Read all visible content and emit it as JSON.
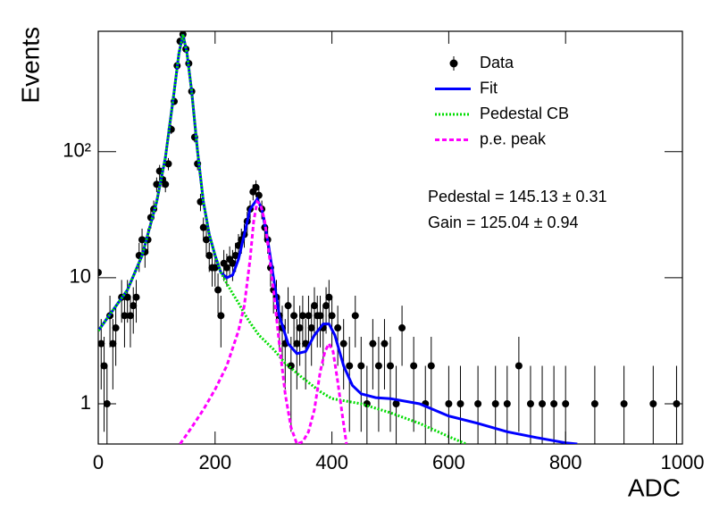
{
  "chart_data": {
    "type": "line",
    "x_label": "ADC",
    "y_label": "Events",
    "log_y": true,
    "xlim": [
      0,
      1000
    ],
    "ylim": [
      0.48,
      900
    ],
    "xticks": [
      0,
      200,
      400,
      600,
      800,
      1000
    ],
    "yticks": [
      1,
      10,
      {
        "value": 100,
        "label": "10²"
      }
    ],
    "annotations": [
      "Pedestal = 145.13 ± 0.31",
      "Gain = 125.04 ± 0.94"
    ],
    "series": [
      {
        "name": "Data",
        "color": "#000000",
        "kind": "points",
        "x": [
          0,
          5,
          10,
          15,
          20,
          25,
          30,
          40,
          45,
          50,
          55,
          60,
          65,
          70,
          75,
          80,
          85,
          90,
          95,
          100,
          105,
          110,
          115,
          120,
          125,
          130,
          135,
          140,
          145,
          150,
          155,
          160,
          165,
          170,
          175,
          180,
          185,
          190,
          195,
          200,
          205,
          210,
          215,
          220,
          225,
          230,
          235,
          240,
          245,
          250,
          255,
          260,
          265,
          270,
          275,
          280,
          285,
          290,
          295,
          300,
          305,
          310,
          315,
          320,
          325,
          330,
          335,
          340,
          345,
          350,
          355,
          360,
          365,
          370,
          375,
          380,
          385,
          390,
          395,
          400,
          410,
          420,
          430,
          440,
          450,
          460,
          470,
          480,
          490,
          500,
          510,
          520,
          540,
          560,
          570,
          600,
          620,
          650,
          680,
          700,
          720,
          740,
          760,
          780,
          800,
          850,
          900,
          950,
          990
        ],
        "values": [
          11,
          3,
          2,
          1,
          5,
          3,
          4,
          7,
          5,
          7,
          5,
          6,
          7,
          15,
          20,
          16,
          20,
          30,
          35,
          55,
          70,
          60,
          55,
          80,
          150,
          250,
          480,
          750,
          850,
          650,
          500,
          300,
          130,
          80,
          40,
          25,
          20,
          15,
          12,
          12,
          8,
          5,
          13,
          12,
          14,
          13,
          15,
          18,
          20,
          22,
          28,
          35,
          48,
          52,
          45,
          35,
          25,
          20,
          12,
          8,
          7,
          5,
          4,
          3,
          6,
          2,
          5,
          3,
          4,
          5,
          3,
          5,
          4,
          6,
          5,
          5,
          4,
          6,
          7,
          5,
          4,
          3,
          2,
          5,
          2,
          1,
          3,
          2,
          3,
          2,
          1,
          4,
          2,
          1,
          2,
          1,
          1,
          1,
          1,
          1,
          2,
          1,
          1,
          1,
          1,
          1,
          1,
          1,
          1
        ],
        "errors": [
          3.3,
          1.7,
          1.4,
          1,
          2.2,
          1.7,
          2,
          2.6,
          2.2,
          2.6,
          2.2,
          2.4,
          2.6,
          3.9,
          4.5,
          4,
          4.5,
          5.5,
          5.9,
          7.4,
          8.4,
          7.7,
          7.4,
          8.9,
          12.2,
          15.8,
          21.9,
          27.4,
          29.2,
          25.5,
          22.4,
          17.3,
          11.4,
          8.9,
          6.3,
          5,
          4.5,
          3.9,
          3.5,
          3.5,
          2.8,
          2.2,
          3.6,
          3.5,
          3.7,
          3.6,
          3.9,
          4.2,
          4.5,
          4.7,
          5.3,
          5.9,
          6.9,
          7.2,
          6.7,
          5.9,
          5,
          4.5,
          3.5,
          2.8,
          2.6,
          2.2,
          2,
          1.7,
          2.4,
          1.4,
          2.2,
          1.7,
          2,
          2.2,
          1.7,
          2.2,
          2,
          2.4,
          2.2,
          2.2,
          2,
          2.4,
          2.6,
          2.2,
          2,
          1.7,
          1.4,
          2.2,
          1.4,
          1,
          1.7,
          1.4,
          1.7,
          1.4,
          1,
          2,
          1.4,
          1,
          1.4,
          1,
          1,
          1,
          1,
          1,
          1.4,
          1,
          1,
          1,
          1,
          1,
          1,
          1,
          1
        ]
      },
      {
        "name": "Fit",
        "color": "#0000ff",
        "kind": "solid",
        "x": [
          0,
          25,
          50,
          75,
          100,
          115,
          130,
          138,
          145,
          152,
          160,
          170,
          180,
          190,
          200,
          210,
          220,
          230,
          240,
          250,
          260,
          272,
          280,
          290,
          300,
          310,
          325,
          340,
          355,
          370,
          385,
          395,
          405,
          420,
          435,
          450,
          475,
          500,
          550,
          600,
          650,
          700,
          750,
          800,
          820
        ],
        "values": [
          3.8,
          5.5,
          8,
          15,
          40,
          90,
          300,
          600,
          850,
          600,
          300,
          100,
          40,
          22,
          15,
          11,
          10,
          10.5,
          14,
          22,
          35,
          42,
          35,
          20,
          10,
          5,
          3,
          2.5,
          2.6,
          3.5,
          4.3,
          4.3,
          3.5,
          2,
          1.4,
          1.2,
          1.12,
          1.1,
          1.0,
          0.8,
          0.7,
          0.6,
          0.54,
          0.49,
          0.48
        ]
      },
      {
        "name": "Pedestal CB",
        "color": "#00dd00",
        "kind": "dotted",
        "x": [
          0,
          25,
          50,
          75,
          100,
          115,
          130,
          138,
          145,
          152,
          160,
          170,
          180,
          190,
          200,
          210,
          220,
          230,
          240,
          250,
          260,
          275,
          290,
          300,
          320,
          350,
          380,
          400,
          450,
          500,
          550,
          600,
          630
        ],
        "values": [
          3.8,
          5.5,
          8,
          15,
          40,
          90,
          300,
          600,
          850,
          600,
          300,
          100,
          40,
          22,
          15,
          11,
          9,
          7.5,
          6.3,
          5.2,
          4.4,
          3.5,
          3,
          2.7,
          2.1,
          1.6,
          1.25,
          1.1,
          1,
          0.85,
          0.7,
          0.55,
          0.48
        ]
      },
      {
        "name": "p.e. peak",
        "color": "#ff00ff",
        "kind": "dashed",
        "x": [
          140,
          160,
          180,
          200,
          220,
          240,
          250,
          260,
          266,
          272,
          278,
          285,
          292,
          300,
          310,
          320,
          330,
          340,
          350,
          360,
          370,
          380,
          388,
          395,
          402,
          410,
          418,
          425
        ],
        "values": [
          0.48,
          0.65,
          0.9,
          1.3,
          2,
          3.8,
          6,
          14,
          28,
          40,
          38,
          28,
          16,
          8,
          3,
          1.2,
          0.65,
          0.48,
          0.5,
          0.6,
          0.9,
          1.8,
          2.6,
          3,
          2.6,
          1.5,
          0.8,
          0.48
        ]
      }
    ]
  }
}
